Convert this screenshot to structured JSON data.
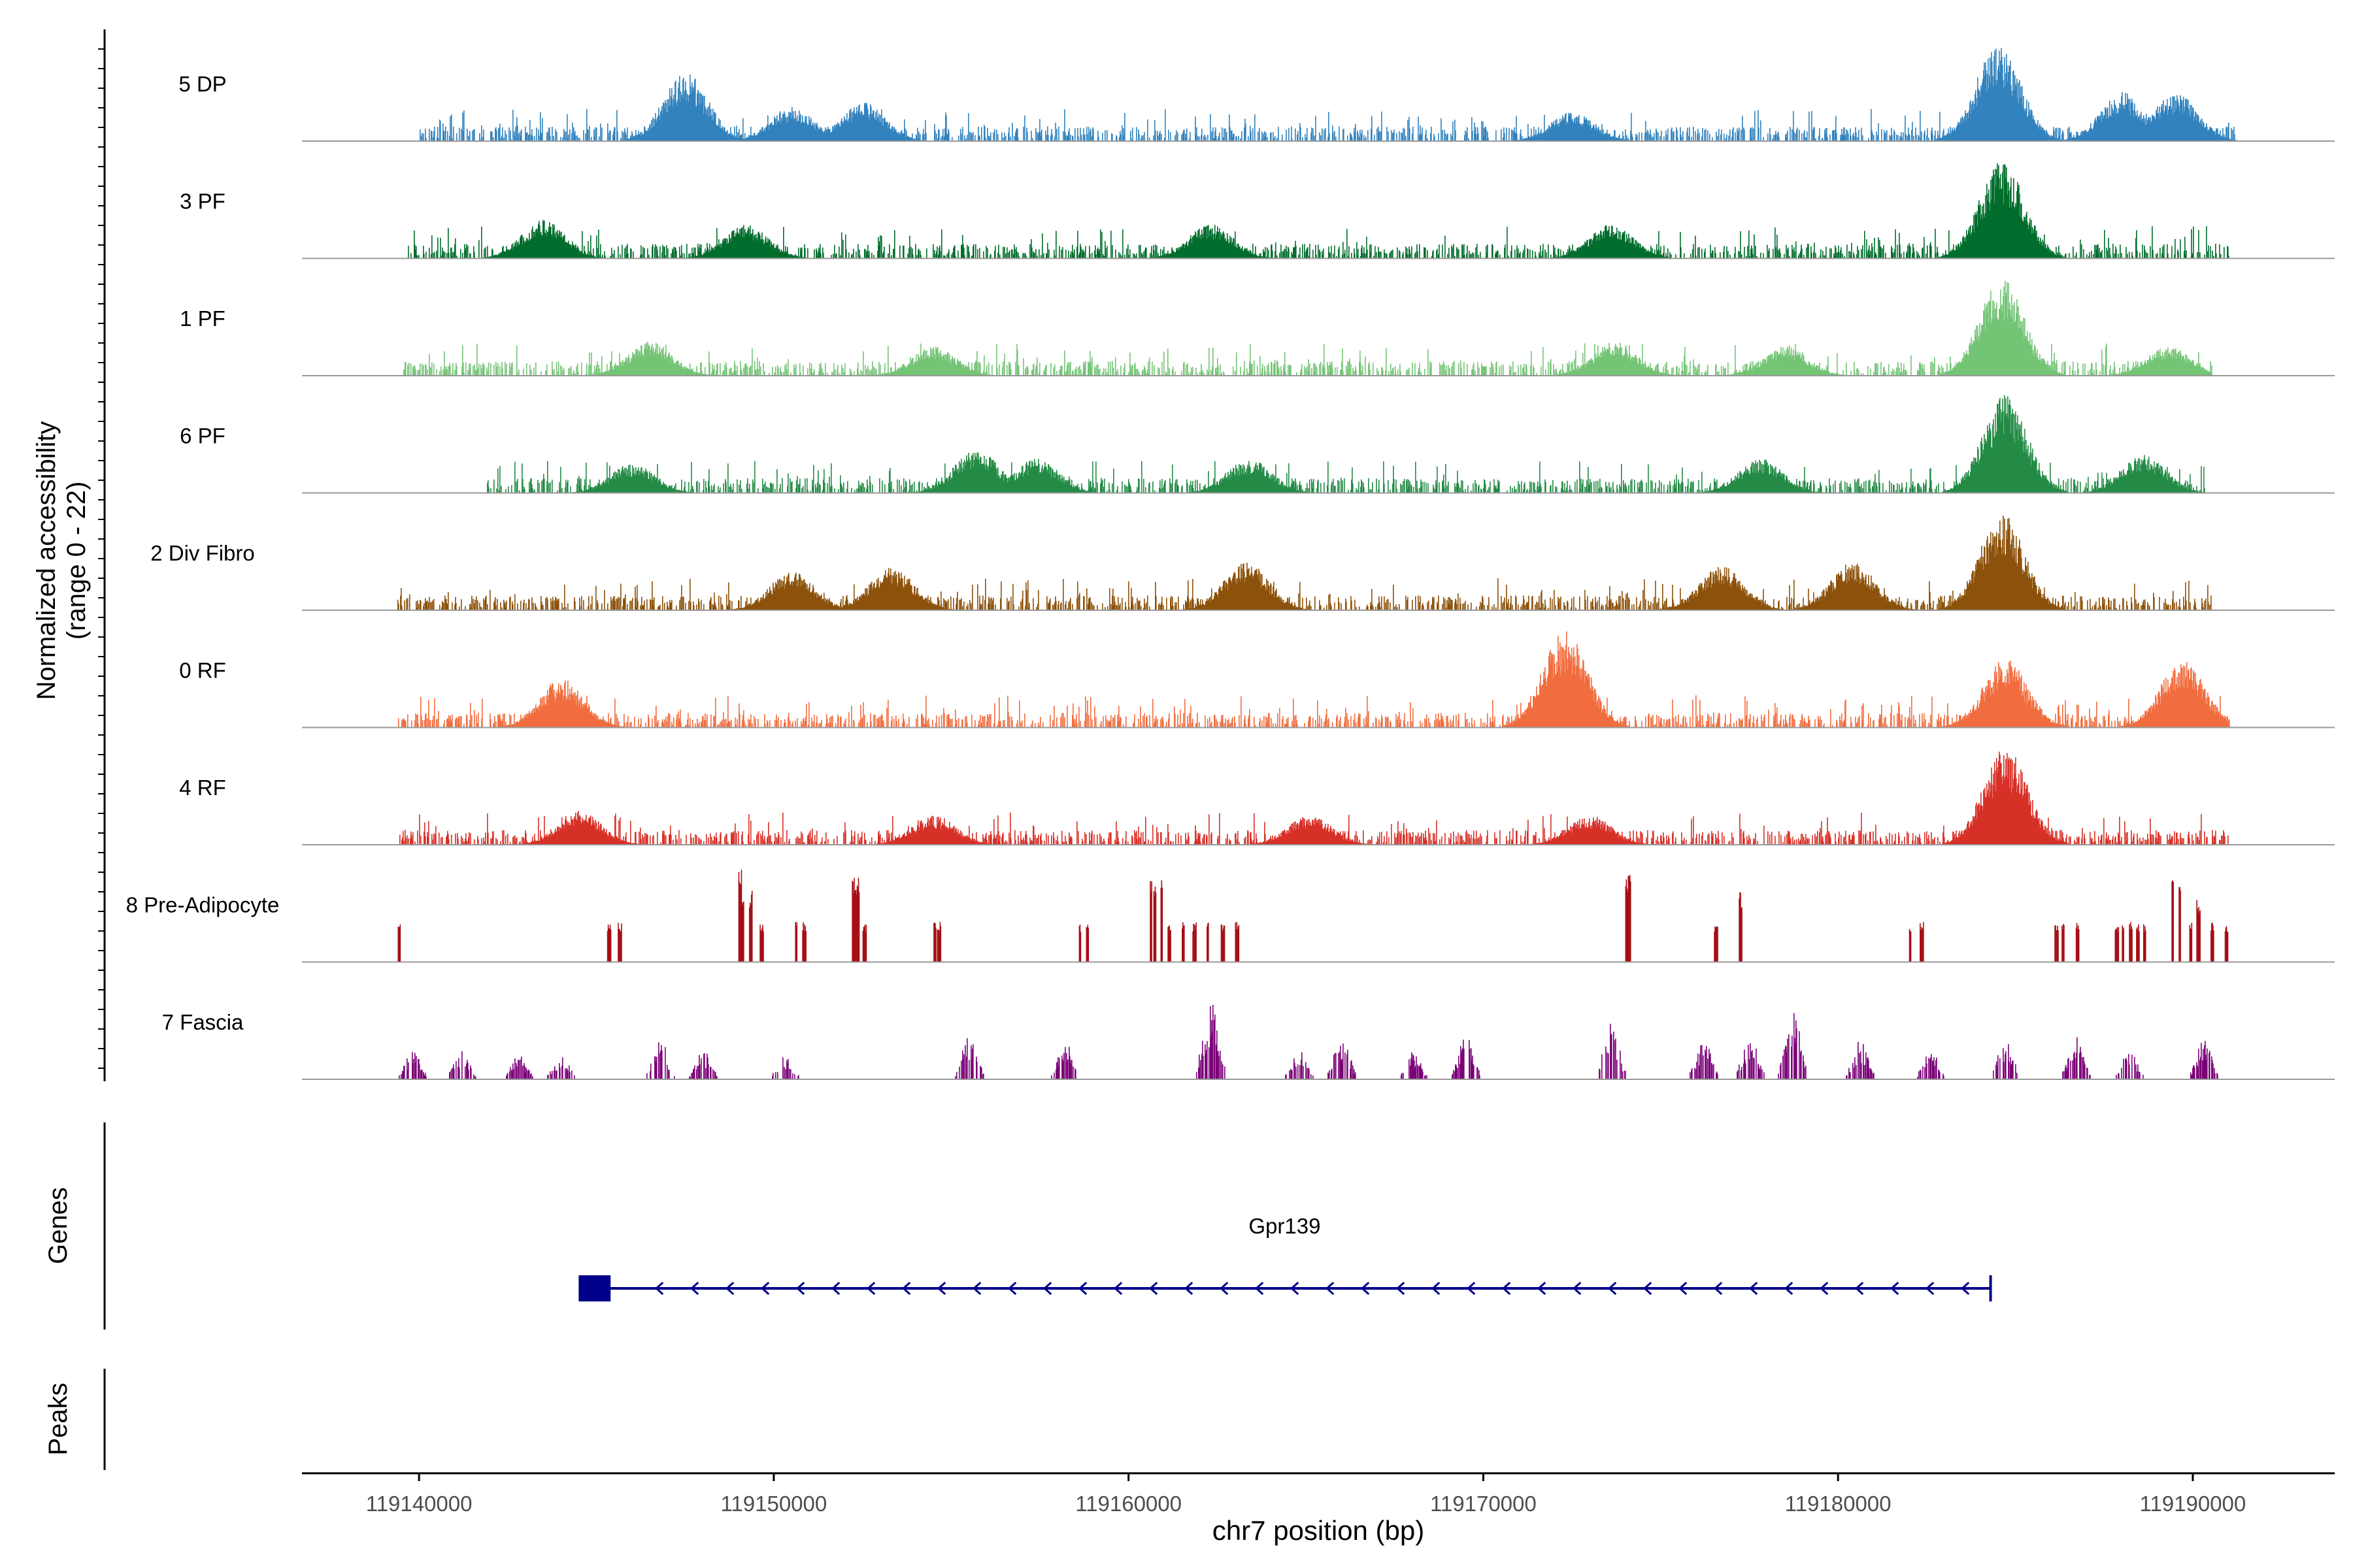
{
  "chart_data": {
    "type": "area",
    "title": "",
    "region": "chr7",
    "xlabel": "chr7 position (bp)",
    "ylabel_line1": "Normalized accessibility",
    "ylabel_line2": "(range 0 - 22)",
    "y_range": [
      0,
      22
    ],
    "xlim": [
      119136700,
      119194000
    ],
    "x_ticks": [
      119140000,
      119150000,
      119160000,
      119170000,
      119180000,
      119190000
    ],
    "x_tick_labels": [
      "119140000",
      "119150000",
      "119160000",
      "119170000",
      "119180000",
      "119190000"
    ],
    "tracks": [
      {
        "name": "5 DP",
        "color": "#3182bd",
        "style": "dense",
        "range": [
          119140000,
          119191200
        ],
        "max_peak_position": 119184500,
        "max_peak_value": 22,
        "hotspots": [
          [
            119147500,
            0.7
          ],
          [
            119150500,
            0.35
          ],
          [
            119152500,
            0.4
          ],
          [
            119172500,
            0.3
          ],
          [
            119184500,
            1.0
          ],
          [
            119188000,
            0.5
          ],
          [
            119189500,
            0.5
          ]
        ]
      },
      {
        "name": "3 PF",
        "color": "#006d2c",
        "style": "dense",
        "range": [
          119139700,
          119191000
        ],
        "max_peak_position": 119184600,
        "max_peak_value": 22,
        "hotspots": [
          [
            119143500,
            0.4
          ],
          [
            119149200,
            0.35
          ],
          [
            119162300,
            0.35
          ],
          [
            119173600,
            0.35
          ],
          [
            119184600,
            1.0
          ]
        ]
      },
      {
        "name": "1 PF",
        "color": "#74c476",
        "style": "dense",
        "range": [
          119139500,
          119190500
        ],
        "max_peak_position": 119184600,
        "max_peak_value": 22,
        "hotspots": [
          [
            119146500,
            0.35
          ],
          [
            119154500,
            0.3
          ],
          [
            119173700,
            0.35
          ],
          [
            119178500,
            0.3
          ],
          [
            119184600,
            1.0
          ],
          [
            119189300,
            0.3
          ]
        ]
      },
      {
        "name": "6 PF",
        "color": "#238b45",
        "style": "dense",
        "range": [
          119141900,
          119190300
        ],
        "max_peak_position": 119184700,
        "max_peak_value": 22,
        "hotspots": [
          [
            119146000,
            0.3
          ],
          [
            119155700,
            0.45
          ],
          [
            119157400,
            0.35
          ],
          [
            119163400,
            0.35
          ],
          [
            119177800,
            0.35
          ],
          [
            119184700,
            1.0
          ],
          [
            119188600,
            0.4
          ]
        ]
      },
      {
        "name": "2 Div Fibro",
        "color": "#8c510a",
        "style": "dense",
        "range": [
          119139400,
          119190500
        ],
        "max_peak_position": 119184600,
        "max_peak_value": 22,
        "hotspots": [
          [
            119150500,
            0.4
          ],
          [
            119153300,
            0.45
          ],
          [
            119163300,
            0.5
          ],
          [
            119176700,
            0.45
          ],
          [
            119180400,
            0.5
          ],
          [
            119184600,
            1.0
          ]
        ]
      },
      {
        "name": "0 RF",
        "color": "#f16d3f",
        "style": "dense",
        "range": [
          119139400,
          119191000
        ],
        "max_peak_position": 119172300,
        "max_peak_value": 22,
        "hotspots": [
          [
            119144000,
            0.5
          ],
          [
            119172300,
            1.0
          ],
          [
            119184700,
            0.7
          ],
          [
            119189700,
            0.7
          ]
        ]
      },
      {
        "name": "4 RF",
        "color": "#d73027",
        "style": "dense",
        "range": [
          119139400,
          119191000
        ],
        "max_peak_position": 119184700,
        "max_peak_value": 22,
        "hotspots": [
          [
            119144500,
            0.35
          ],
          [
            119154500,
            0.3
          ],
          [
            119165100,
            0.3
          ],
          [
            119173000,
            0.3
          ],
          [
            119184700,
            1.0
          ]
        ]
      },
      {
        "name": "8 Pre-Adipocyte",
        "color": "#a50f15",
        "style": "spiky",
        "spikes": [
          119139400,
          119145300,
          119145600,
          119149000,
          119149100,
          119149300,
          119149600,
          119150600,
          119150800,
          119152200,
          119152300,
          119152500,
          119154500,
          119154600,
          119158600,
          119158800,
          119160600,
          119160700,
          119160900,
          119161100,
          119161500,
          119161800,
          119162200,
          119162600,
          119163000,
          119174000,
          119174100,
          119176500,
          119177200,
          119182000,
          119182300,
          119186100,
          119186300,
          119186700,
          119187800,
          119188000,
          119188200,
          119188400,
          119188600,
          119189400,
          119189600,
          119189900,
          119190100,
          119190500,
          119190900
        ],
        "spike_values": [
          9,
          9,
          9,
          22,
          16,
          16,
          9,
          9,
          9,
          19,
          19,
          9,
          9,
          9,
          9,
          9,
          19,
          19,
          22,
          9,
          9,
          9,
          9,
          9,
          9,
          20,
          20,
          9,
          16,
          9,
          9,
          9,
          9,
          9,
          9,
          9,
          9,
          9,
          9,
          19,
          19,
          9,
          14,
          9,
          9
        ]
      },
      {
        "name": "7 Fascia",
        "color": "#7a0177",
        "style": "sparse",
        "clusters": [
          [
            119139800,
            0.3
          ],
          [
            119141200,
            0.3
          ],
          [
            119142800,
            0.25
          ],
          [
            119144000,
            0.25
          ],
          [
            119146800,
            0.4
          ],
          [
            119148000,
            0.3
          ],
          [
            119150300,
            0.25
          ],
          [
            119155500,
            0.45
          ],
          [
            119158200,
            0.4
          ],
          [
            119162300,
            0.8
          ],
          [
            119164800,
            0.3
          ],
          [
            119166000,
            0.45
          ],
          [
            119168000,
            0.3
          ],
          [
            119169500,
            0.45
          ],
          [
            119173600,
            0.6
          ],
          [
            119176200,
            0.4
          ],
          [
            119177500,
            0.45
          ],
          [
            119178700,
            0.8
          ],
          [
            119180600,
            0.4
          ],
          [
            119182600,
            0.3
          ],
          [
            119184700,
            0.4
          ],
          [
            119186700,
            0.45
          ],
          [
            119188200,
            0.3
          ],
          [
            119190300,
            0.4
          ]
        ]
      }
    ],
    "gene_track": {
      "label": "Genes",
      "genes": [
        {
          "name": "Gpr139",
          "start": 119144500,
          "end": 119184300,
          "strand": "-",
          "color": "#00008b",
          "exons": [
            [
              119144500,
              119145400
            ]
          ]
        }
      ]
    },
    "peaks_track": {
      "label": "Peaks"
    }
  }
}
